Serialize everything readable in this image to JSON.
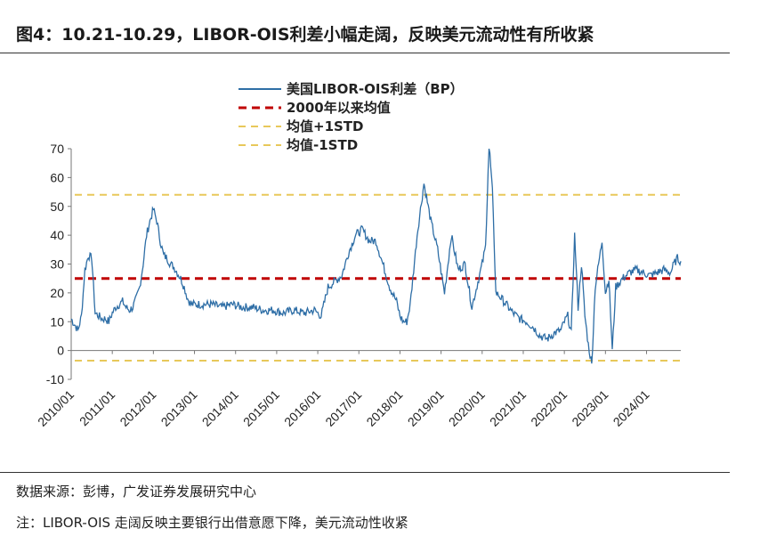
{
  "header": {
    "title": "图4：10.21-10.29，LIBOR-OIS利差小幅走阔，反映美元流动性有所收紧"
  },
  "footer": {
    "source": "数据来源：彭博，广发证券发展研究中心",
    "note": "注：LIBOR-OIS 走阔反映主要银行出借意愿下降，美元流动性收紧"
  },
  "chart_data": {
    "type": "line",
    "title": "",
    "xlabel": "",
    "ylabel": "",
    "ylim": [
      -10,
      70
    ],
    "yticks": [
      -10,
      0,
      10,
      20,
      30,
      40,
      50,
      60,
      70
    ],
    "xlim": [
      "2010-01",
      "2024-11"
    ],
    "xticks": [
      "2010/01",
      "2011/01",
      "2012/01",
      "2013/01",
      "2014/01",
      "2015/01",
      "2016/01",
      "2017/01",
      "2018/01",
      "2019/01",
      "2020/01",
      "2021/01",
      "2022/01",
      "2023/01",
      "2024/01"
    ],
    "grid": false,
    "legend_position": "top-left",
    "colors": {
      "series": "#2e6ea6",
      "mean": "#c00000",
      "std": "#e8c85a"
    },
    "series": [
      {
        "name": "美国LIBOR-OIS利差（BP）",
        "style": "solid",
        "x": [
          "2010-01",
          "2010-02",
          "2010-03",
          "2010-04",
          "2010-05",
          "2010-06",
          "2010-07",
          "2010-08",
          "2010-09",
          "2010-10",
          "2010-11",
          "2010-12",
          "2011-01",
          "2011-02",
          "2011-03",
          "2011-04",
          "2011-05",
          "2011-06",
          "2011-07",
          "2011-08",
          "2011-09",
          "2011-10",
          "2011-11",
          "2011-12",
          "2012-01",
          "2012-02",
          "2012-03",
          "2012-04",
          "2012-05",
          "2012-06",
          "2012-07",
          "2012-08",
          "2012-09",
          "2012-10",
          "2012-11",
          "2012-12",
          "2013-03",
          "2013-06",
          "2013-09",
          "2013-12",
          "2014-03",
          "2014-06",
          "2014-09",
          "2014-12",
          "2015-03",
          "2015-06",
          "2015-09",
          "2015-12",
          "2016-02",
          "2016-04",
          "2016-06",
          "2016-08",
          "2016-10",
          "2016-12",
          "2017-02",
          "2017-04",
          "2017-06",
          "2017-08",
          "2017-10",
          "2017-12",
          "2018-01",
          "2018-02",
          "2018-03",
          "2018-04",
          "2018-05",
          "2018-06",
          "2018-08",
          "2018-10",
          "2018-12",
          "2019-02",
          "2019-04",
          "2019-06",
          "2019-08",
          "2019-10",
          "2019-12",
          "2020-01",
          "2020-02",
          "2020-03",
          "2020-04",
          "2020-05",
          "2020-06",
          "2020-08",
          "2020-10",
          "2020-12",
          "2021-02",
          "2021-04",
          "2021-06",
          "2021-08",
          "2021-10",
          "2021-12",
          "2022-01",
          "2022-02",
          "2022-03",
          "2022-04",
          "2022-05",
          "2022-06",
          "2022-07",
          "2022-08",
          "2022-09",
          "2022-10",
          "2022-11",
          "2022-12",
          "2023-01",
          "2023-02",
          "2023-03",
          "2023-04",
          "2023-06",
          "2023-08",
          "2023-10",
          "2023-12",
          "2024-02",
          "2024-04",
          "2024-06",
          "2024-08",
          "2024-09",
          "2024-10",
          "2024-11"
        ],
        "values": [
          11,
          9,
          7,
          12,
          28,
          33,
          32,
          13,
          12,
          11,
          11,
          10,
          13,
          15,
          16,
          17,
          15,
          14,
          15,
          18,
          22,
          30,
          40,
          45,
          49,
          45,
          38,
          33,
          32,
          30,
          29,
          27,
          25,
          22,
          18,
          16,
          16,
          16,
          15,
          16,
          15,
          15,
          14,
          14,
          13,
          14,
          13,
          14,
          12,
          22,
          24,
          26,
          34,
          40,
          42,
          38,
          38,
          30,
          22,
          17,
          12,
          10,
          10,
          16,
          28,
          40,
          58,
          45,
          35,
          20,
          40,
          28,
          30,
          15,
          25,
          30,
          36,
          72,
          55,
          20,
          19,
          16,
          13,
          11,
          10,
          8,
          5,
          4,
          6,
          7,
          10,
          12,
          6,
          40,
          15,
          30,
          12,
          2,
          -5,
          22,
          30,
          38,
          20,
          25,
          0,
          22,
          25,
          27,
          28,
          27,
          26,
          27,
          28,
          27,
          30,
          32,
          31
        ]
      },
      {
        "name": "2000年以来均值",
        "style": "dashed",
        "constant": 25
      },
      {
        "name": "均值+1STD",
        "style": "dashed",
        "constant": 54
      },
      {
        "name": "均值-1STD",
        "style": "dashed",
        "constant": -3.5
      }
    ]
  }
}
